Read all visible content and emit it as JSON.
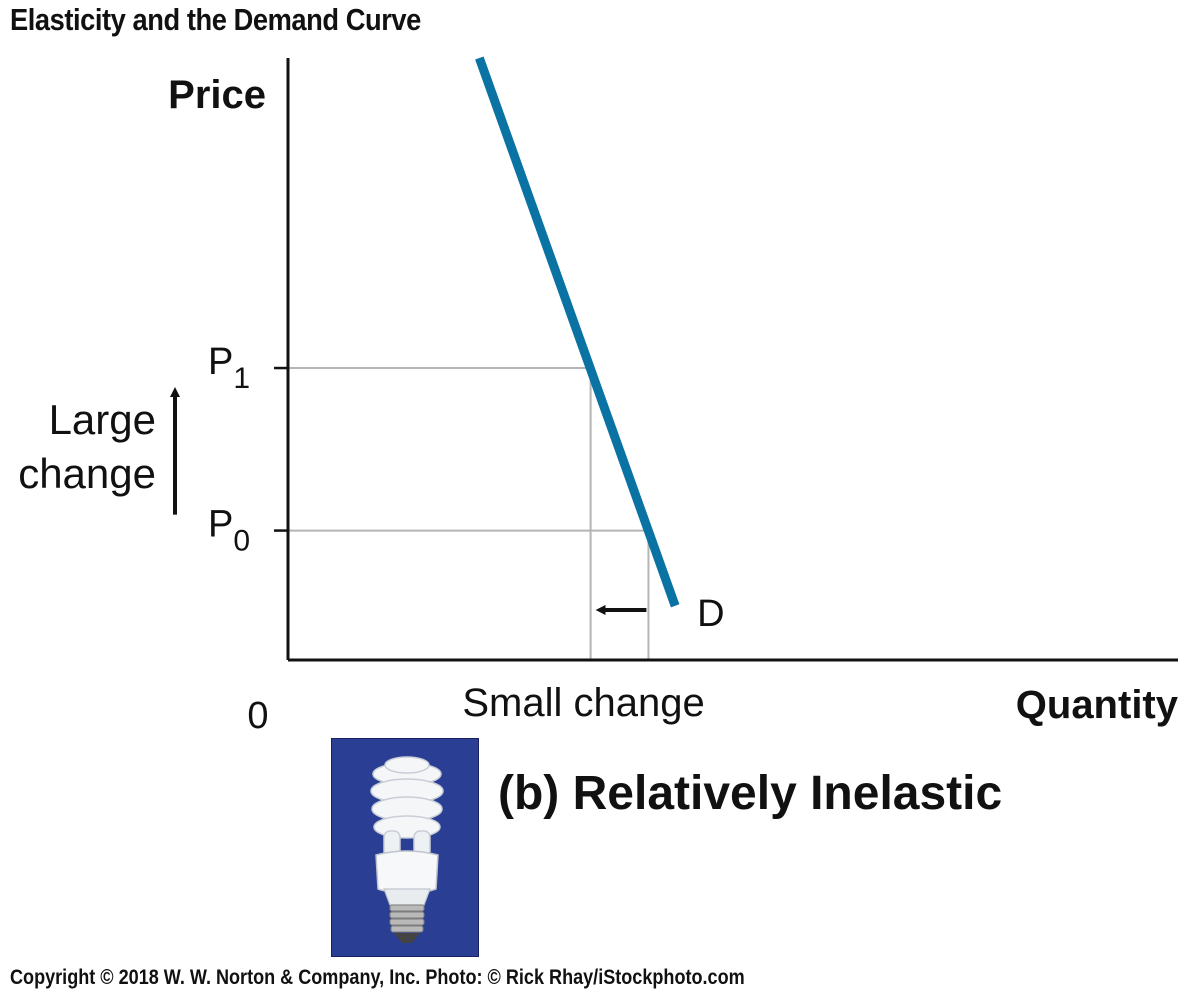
{
  "header": {
    "title": "Elasticity and the Demand Curve"
  },
  "footer": {
    "copyright": "Copyright © 2018 W. W. Norton & Company, Inc. Photo: © Rick Rhay/iStockphoto.com"
  },
  "panel": {
    "label": "(b) Relatively Inelastic",
    "photo_subject": "compact-fluorescent-light-bulb"
  },
  "colors": {
    "demand_curve": "#0a73a3",
    "guide_lines": "#b5b5b5",
    "axes": "#111111",
    "photo_background": "#2a3f94"
  },
  "chart_data": {
    "type": "line",
    "title": "Elasticity and the Demand Curve",
    "xlabel": "Quantity",
    "ylabel": "Price",
    "origin_label": "0",
    "xlim": [
      0,
      100
    ],
    "ylim": [
      0,
      100
    ],
    "grid": false,
    "series": [
      {
        "name": "D",
        "points": [
          [
            21.5,
            100
          ],
          [
            43.5,
            9
          ]
        ]
      }
    ],
    "price_levels": [
      {
        "label": "P",
        "subscript": "1",
        "y": 48.5,
        "x": 34
      },
      {
        "label": "P",
        "subscript": "0",
        "y": 21.5,
        "x": 40.5
      }
    ],
    "annotations": {
      "price_change": [
        "Large",
        "change"
      ],
      "quantity_change": "Small change"
    }
  }
}
